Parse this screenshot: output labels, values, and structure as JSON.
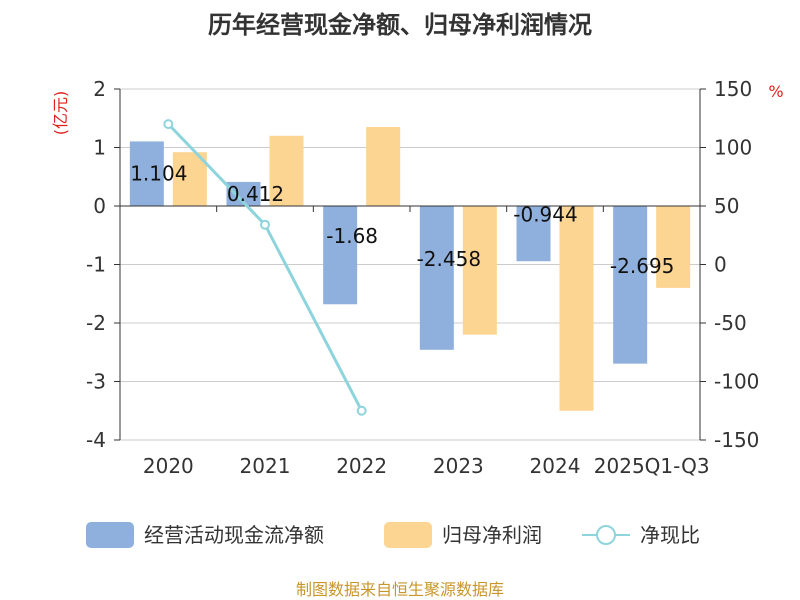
{
  "chart_data": {
    "type": "bar",
    "title": "历年经营现金净额、归母净利润情况",
    "categories": [
      "2020",
      "2021",
      "2022",
      "2023",
      "2024",
      "2025Q1-Q3"
    ],
    "series": [
      {
        "name": "经营活动现金流净额",
        "axis": "left",
        "values": [
          1.104,
          0.412,
          -1.68,
          -2.458,
          -0.944,
          -2.695
        ],
        "color": "#8fb0dc"
      },
      {
        "name": "归母净利润",
        "axis": "left",
        "values": [
          0.92,
          1.2,
          1.35,
          -2.2,
          -3.5,
          -1.4
        ],
        "color": "#fdd593"
      },
      {
        "name": "净现比",
        "axis": "right",
        "type": "line",
        "values": [
          120,
          34,
          -125,
          null,
          null,
          null
        ],
        "color": "#8ed4dc"
      }
    ],
    "data_labels": [
      "1.104",
      "0.412",
      "-1.68",
      "-2.458",
      "-0.944",
      "-2.695"
    ],
    "left_axis": {
      "label": "(亿元)",
      "ylim": [
        -4,
        2
      ],
      "ticks": [
        "2",
        "1",
        "0",
        "-1",
        "-2",
        "-3",
        "-4"
      ]
    },
    "right_axis": {
      "label": "%",
      "ylim": [
        -150,
        150
      ],
      "ticks": [
        "150",
        "100",
        "50",
        "0",
        "-50",
        "-100",
        "-150"
      ]
    },
    "legend": [
      "经营活动现金流净额",
      "归母净利润",
      "净现比"
    ],
    "legend_position": "bottom",
    "grid": true,
    "source": "制图数据来自恒生聚源数据库"
  }
}
